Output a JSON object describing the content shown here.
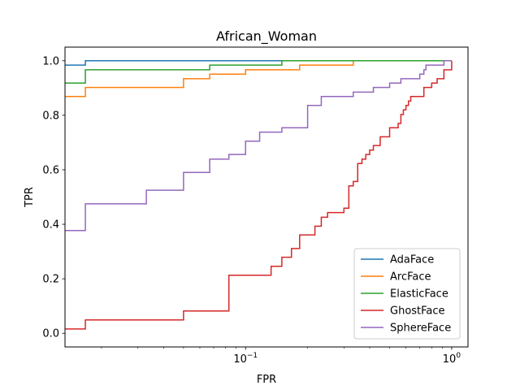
{
  "chart_data": {
    "type": "line",
    "step": "post",
    "title": "African_Woman",
    "xlabel": "FPR",
    "ylabel": "TPR",
    "xscale": "log",
    "xlim": [
      0.0133,
      1.2
    ],
    "ylim": [
      -0.05,
      1.05
    ],
    "xticks": [
      {
        "value": 0.1,
        "base": "10",
        "exp": "−1"
      },
      {
        "value": 1,
        "base": "10",
        "exp": "0"
      }
    ],
    "yticks": [
      {
        "value": 0.0,
        "label": "0.0"
      },
      {
        "value": 0.2,
        "label": "0.2"
      },
      {
        "value": 0.4,
        "label": "0.4"
      },
      {
        "value": 0.6,
        "label": "0.6"
      },
      {
        "value": 0.8,
        "label": "0.8"
      },
      {
        "value": 1.0,
        "label": "1.0"
      }
    ],
    "legend": {
      "placement": "lower-right"
    },
    "grid": false,
    "series": [
      {
        "name": "AdaFace",
        "color": "#1f77b4",
        "x": [
          0.0133,
          0.0167,
          1.0
        ],
        "y": [
          0.984,
          1.0,
          1.0
        ]
      },
      {
        "name": "ArcFace",
        "color": "#ff7f0e",
        "x": [
          0.0133,
          0.0167,
          0.05,
          0.067,
          0.1,
          0.183,
          0.333,
          1.0
        ],
        "y": [
          0.869,
          0.902,
          0.934,
          0.951,
          0.967,
          0.984,
          1.0,
          1.0
        ]
      },
      {
        "name": "ElasticFace",
        "color": "#2ca02c",
        "x": [
          0.0133,
          0.0167,
          0.067,
          0.15,
          1.0
        ],
        "y": [
          0.918,
          0.967,
          0.984,
          1.0,
          1.0
        ]
      },
      {
        "name": "GhostFace",
        "color": "#d62728",
        "x": [
          0.0133,
          0.0167,
          0.05,
          0.083,
          0.133,
          0.15,
          0.167,
          0.183,
          0.217,
          0.233,
          0.25,
          0.3,
          0.317,
          0.333,
          0.35,
          0.367,
          0.383,
          0.4,
          0.417,
          0.45,
          0.5,
          0.55,
          0.567,
          0.583,
          0.6,
          0.617,
          0.633,
          0.667,
          0.733,
          0.8,
          0.85,
          0.917,
          1.0
        ],
        "y": [
          0.016,
          0.049,
          0.082,
          0.213,
          0.246,
          0.279,
          0.311,
          0.361,
          0.393,
          0.426,
          0.443,
          0.459,
          0.541,
          0.557,
          0.623,
          0.639,
          0.656,
          0.672,
          0.689,
          0.721,
          0.754,
          0.77,
          0.803,
          0.82,
          0.836,
          0.852,
          0.869,
          0.869,
          0.902,
          0.918,
          0.934,
          0.967,
          1.0
        ]
      },
      {
        "name": "SphereFace",
        "color": "#9467bd",
        "x": [
          0.0133,
          0.0167,
          0.033,
          0.05,
          0.067,
          0.083,
          0.1,
          0.117,
          0.15,
          0.2,
          0.233,
          0.333,
          0.417,
          0.5,
          0.567,
          0.7,
          0.733,
          0.75,
          0.8,
          0.917,
          1.0
        ],
        "y": [
          0.377,
          0.475,
          0.525,
          0.59,
          0.639,
          0.656,
          0.705,
          0.738,
          0.754,
          0.836,
          0.869,
          0.885,
          0.902,
          0.918,
          0.934,
          0.951,
          0.967,
          0.984,
          0.984,
          1.0,
          1.0
        ]
      }
    ]
  }
}
